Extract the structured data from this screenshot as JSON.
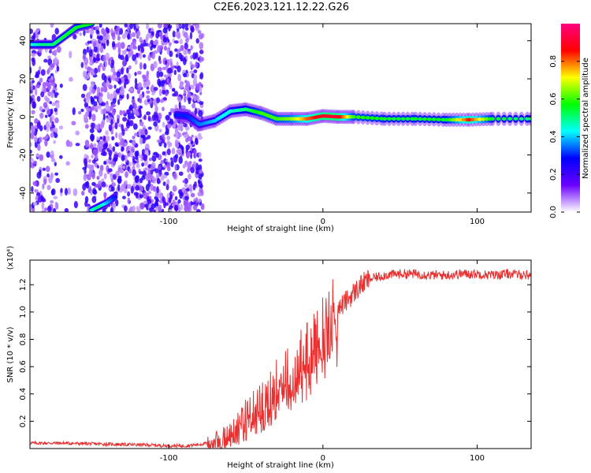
{
  "title": "C2E6.2023.121.12.22.G26",
  "chart_data": [
    {
      "type": "heatmap",
      "title": "C2E6.2023.121.12.22.G26",
      "xlabel": "Height of straight line (km)",
      "ylabel": "Frequency (Hz)",
      "xlim": [
        -190,
        135
      ],
      "ylim": [
        -50,
        49
      ],
      "x_ticks": [
        "-100",
        "0",
        "100"
      ],
      "y_ticks": [
        "-40",
        "-20",
        "0",
        "20",
        "40"
      ],
      "colorbar": {
        "label": "Normalized spectral amplitude",
        "range": [
          0,
          1
        ],
        "ticks": [
          "0.0",
          "0.2",
          "0.4",
          "0.6",
          "0.8"
        ],
        "colors": [
          "#ffffff",
          "#6a00ff",
          "#0000ff",
          "#00ffff",
          "#00ff00",
          "#ffff00",
          "#ff0000",
          "#ff0080"
        ]
      },
      "ridge": {
        "x": [
          -95,
          -88,
          -80,
          -70,
          -60,
          -50,
          -40,
          -30,
          -20,
          -10,
          0,
          10,
          20,
          40,
          60,
          80,
          95,
          110,
          135
        ],
        "y": [
          1,
          0.5,
          -4,
          -2,
          3,
          4,
          2,
          -1,
          -1,
          -1,
          0.5,
          0,
          0,
          -1,
          -1,
          -1.5,
          -1.5,
          -1,
          -1
        ],
        "amplitude": [
          0.3,
          0.3,
          0.35,
          0.4,
          0.45,
          0.5,
          0.6,
          0.6,
          0.65,
          0.8,
          0.9,
          0.9,
          0.6,
          0.55,
          0.55,
          0.55,
          0.85,
          0.55,
          0.5
        ]
      },
      "upper_branch": {
        "x": [
          -190,
          -182,
          -175,
          -165,
          -160,
          -150
        ],
        "y": [
          38,
          38,
          38,
          44,
          47,
          49
        ],
        "amplitude": [
          0.4,
          0.5,
          0.5,
          0.55,
          0.55,
          0.55
        ]
      },
      "lower_branch": {
        "x": [
          -150,
          -145,
          -140,
          -135
        ],
        "y": [
          -49,
          -47,
          -45,
          -42
        ],
        "amplitude": [
          0.45,
          0.5,
          0.4,
          0.3
        ]
      }
    },
    {
      "type": "line",
      "xlabel": "Height of straight line (km)",
      "ylabel": "SNR (10 * v/v)",
      "scale_label": "(x10⁴)",
      "xlim": [
        -190,
        135
      ],
      "ylim": [
        0,
        1.38
      ],
      "x_ticks": [
        "-100",
        "0",
        "100"
      ],
      "y_ticks": [
        "0.2",
        "0.4",
        "0.6",
        "0.8",
        "1.0",
        "1.2"
      ],
      "color": "#e83030",
      "series": [
        {
          "x": [
            -190,
            -170,
            -150,
            -130,
            -110,
            -100,
            -90,
            -80,
            -70,
            -60,
            -55,
            -50,
            -45,
            -40,
            -35,
            -30,
            -25,
            -20,
            -15,
            -10,
            -5,
            0,
            5,
            10,
            15,
            20,
            25,
            30,
            40,
            50,
            60,
            70,
            80,
            90,
            100,
            110,
            120,
            135
          ],
          "y": [
            0.04,
            0.04,
            0.035,
            0.03,
            0.025,
            0.02,
            0.02,
            0.03,
            0.05,
            0.1,
            0.18,
            0.24,
            0.28,
            0.33,
            0.4,
            0.47,
            0.52,
            0.56,
            0.63,
            0.71,
            0.78,
            0.88,
            0.95,
            1.02,
            1.08,
            1.14,
            1.2,
            1.24,
            1.27,
            1.28,
            1.28,
            1.27,
            1.27,
            1.28,
            1.28,
            1.27,
            1.28,
            1.27
          ]
        }
      ]
    }
  ]
}
